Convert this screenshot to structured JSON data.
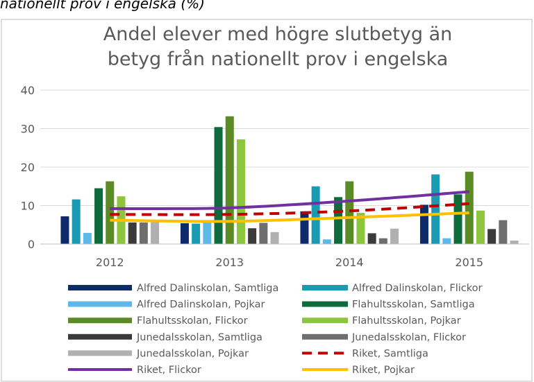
{
  "caption": "nationellt prov i engelska (%)",
  "chart_data": {
    "type": "bar",
    "title": [
      "Andel elever med högre slutbetyg än",
      "betyg från nationellt prov i engelska"
    ],
    "categories": [
      "2012",
      "2013",
      "2014",
      "2015"
    ],
    "ylim": [
      0,
      40
    ],
    "yticks": [
      0,
      10,
      20,
      30,
      40
    ],
    "grid": true,
    "legend": "bottom",
    "series": [
      {
        "name": "Alfred Dalinskolan, Samtliga",
        "type": "bar",
        "color": "#0d2a6b",
        "values": [
          7.2,
          5.4,
          8.5,
          10.2
        ]
      },
      {
        "name": "Alfred Dalinskolan, Flickor",
        "type": "bar",
        "color": "#1a9bb3",
        "values": [
          11.6,
          5.3,
          15.0,
          18.1
        ]
      },
      {
        "name": "Alfred Dalinskolan, Pojkar",
        "type": "bar",
        "color": "#5db9e8",
        "values": [
          2.9,
          5.6,
          1.2,
          1.5
        ]
      },
      {
        "name": "Flahultsskolan, Samtliga",
        "type": "bar",
        "color": "#0e6b3b",
        "values": [
          14.5,
          30.4,
          12.2,
          12.9
        ]
      },
      {
        "name": "Flahultsskolan, Flickor",
        "type": "bar",
        "color": "#5b8b24",
        "values": [
          16.3,
          33.2,
          16.3,
          18.8
        ]
      },
      {
        "name": "Flahultsskolan, Pojkar",
        "type": "bar",
        "color": "#8dc53d",
        "values": [
          12.4,
          27.2,
          8.1,
          8.7
        ]
      },
      {
        "name": "Junedalsskolan, Samtliga",
        "type": "bar",
        "color": "#3a3a3a",
        "values": [
          5.6,
          4.1,
          2.8,
          3.9
        ]
      },
      {
        "name": "Junedalsskolan, Flickor",
        "type": "bar",
        "color": "#6e6e6e",
        "values": [
          5.6,
          5.5,
          1.5,
          6.2
        ]
      },
      {
        "name": "Junedalsskolan, Pojkar",
        "type": "bar",
        "color": "#b0b0b0",
        "values": [
          5.8,
          3.1,
          4.0,
          0.9
        ]
      },
      {
        "name": "Riket, Samtliga",
        "type": "line",
        "dash": true,
        "color": "#c00000",
        "values": [
          7.7,
          7.7,
          8.6,
          10.5
        ]
      },
      {
        "name": "Riket, Flickor",
        "type": "line",
        "dash": false,
        "color": "#7030a0",
        "values": [
          9.2,
          9.4,
          11.2,
          13.6
        ]
      },
      {
        "name": "Riket, Pojkar",
        "type": "line",
        "dash": false,
        "color": "#ffc000",
        "values": [
          6.2,
          5.9,
          6.9,
          8.1
        ]
      }
    ]
  }
}
